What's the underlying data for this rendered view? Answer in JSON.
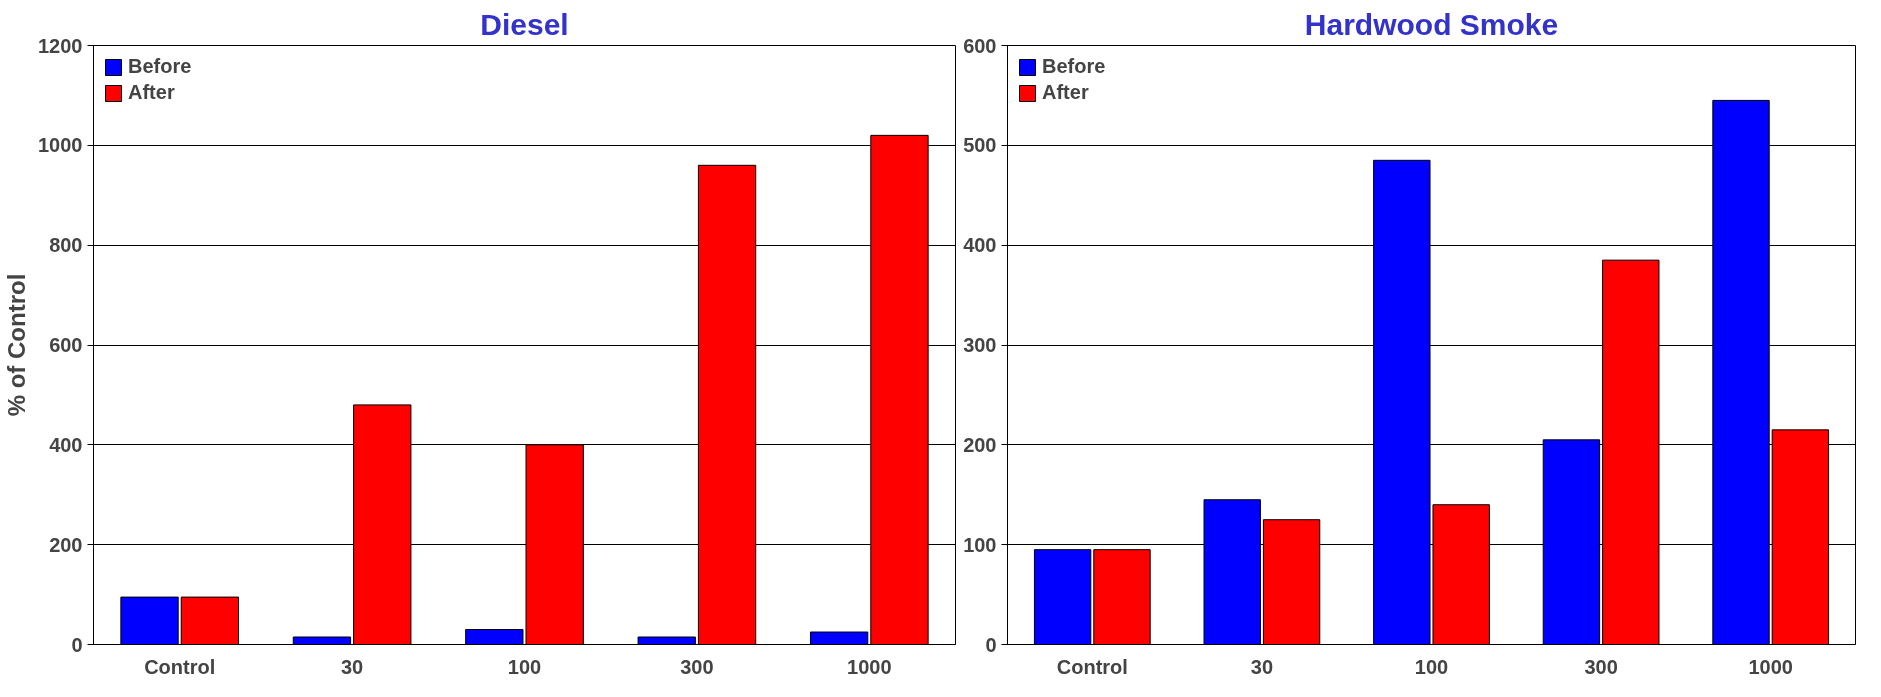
{
  "chart_data": [
    {
      "type": "bar",
      "title": "Diesel",
      "ylabel": "% of Control",
      "categories": [
        "Control",
        "30",
        "100",
        "300",
        "1000"
      ],
      "series": [
        {
          "name": "Before",
          "color": "#0000ff",
          "values": [
            95,
            15,
            30,
            15,
            25
          ]
        },
        {
          "name": "After",
          "color": "#ff0000",
          "values": [
            95,
            480,
            400,
            960,
            1020
          ]
        }
      ],
      "ylim": [
        0,
        1200
      ],
      "yticks": [
        0,
        200,
        400,
        600,
        800,
        1000,
        1200
      ],
      "grid": "y",
      "legend": "top left"
    },
    {
      "type": "bar",
      "title": "Hardwood Smoke",
      "categories": [
        "Control",
        "30",
        "100",
        "300",
        "1000"
      ],
      "series": [
        {
          "name": "Before",
          "color": "#0000ff",
          "values": [
            95,
            145,
            485,
            205,
            545
          ]
        },
        {
          "name": "After",
          "color": "#ff0000",
          "values": [
            95,
            125,
            140,
            385,
            215
          ]
        }
      ],
      "ylim": [
        0,
        600
      ],
      "yticks": [
        0,
        100,
        200,
        300,
        400,
        500,
        600
      ],
      "grid": "y",
      "legend": "top left"
    }
  ]
}
